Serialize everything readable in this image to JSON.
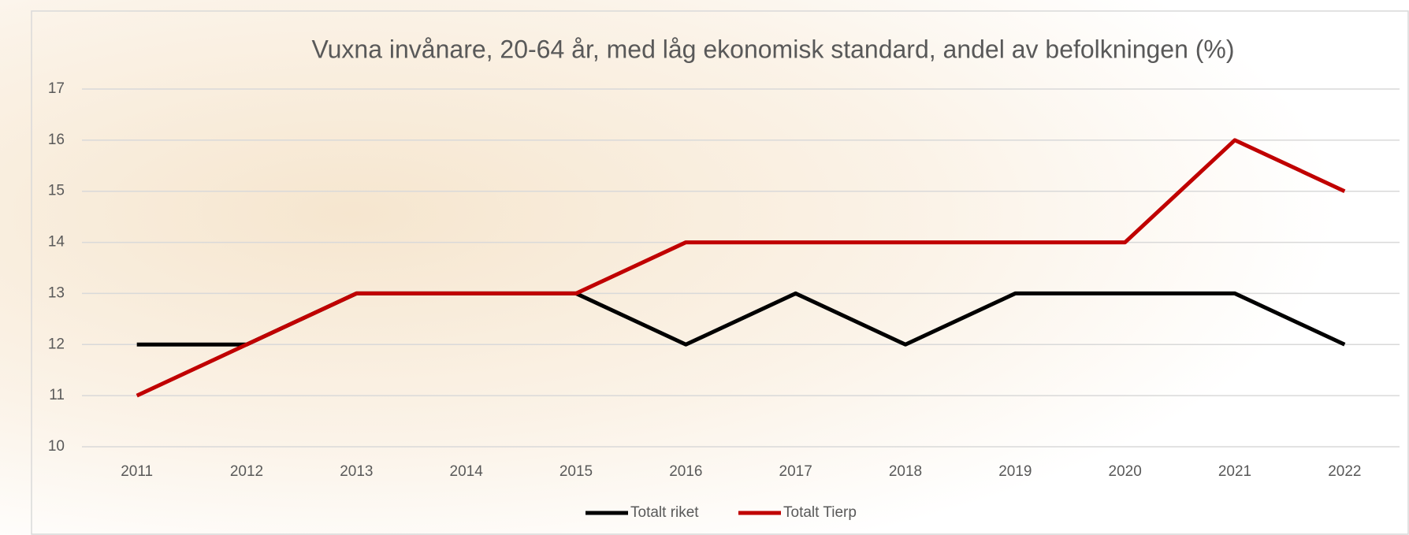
{
  "chart_data": {
    "type": "line",
    "title": "Vuxna invånare, 20-64 år, med låg ekonomisk standard,  andel av befolkningen (%)",
    "categories": [
      "2011",
      "2012",
      "2013",
      "2014",
      "2015",
      "2016",
      "2017",
      "2018",
      "2019",
      "2020",
      "2021",
      "2022"
    ],
    "series": [
      {
        "name": "Totalt riket",
        "color": "#000000",
        "values": [
          12,
          12,
          13,
          13,
          13,
          12,
          13,
          12,
          13,
          13,
          13,
          12
        ]
      },
      {
        "name": "Totalt Tierp",
        "color": "#c00000",
        "values": [
          11,
          12,
          13,
          13,
          13,
          14,
          14,
          14,
          14,
          14,
          16,
          15
        ]
      }
    ],
    "ylim": [
      10,
      17
    ],
    "yticks": [
      10,
      11,
      12,
      13,
      14,
      15,
      16,
      17
    ],
    "grid": true,
    "legend": "bottom"
  }
}
